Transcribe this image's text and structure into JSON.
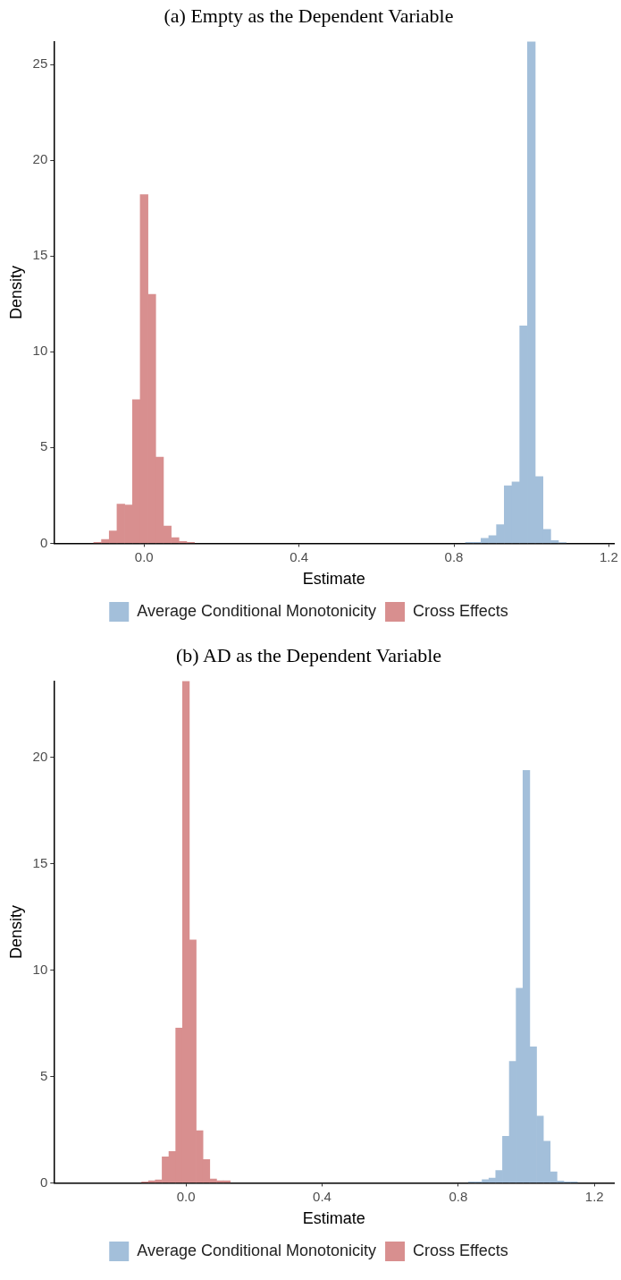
{
  "chart_data": [
    {
      "type": "histogram",
      "title": "(a) Empty as the Dependent Variable",
      "xlabel": "Estimate",
      "ylabel": "Density",
      "xlim": [
        -0.233,
        1.213
      ],
      "xticks": [
        {
          "value": 0,
          "label": "0.0"
        },
        0.4,
        0.8,
        1.2
      ],
      "ylim": [
        0,
        26.2
      ],
      "yticks": [
        0,
        5,
        10,
        15,
        20,
        25
      ],
      "grid": false,
      "legend": "bottom",
      "bins": [
        -0.13,
        -0.11,
        -0.09,
        -0.07,
        -0.05,
        -0.03,
        -0.01,
        0.01,
        0.03,
        0.05,
        0.07,
        0.09,
        0.11,
        0.13,
        0.15,
        0.17,
        0.19,
        0.21,
        0.23,
        0.25,
        0.27,
        0.29,
        0.31,
        0.33,
        0.35,
        0.37,
        0.39,
        0.41,
        0.43,
        0.45,
        0.47,
        0.49,
        0.51,
        0.53,
        0.55,
        0.57,
        0.59,
        0.61,
        0.63,
        0.65,
        0.67,
        0.69,
        0.71,
        0.73,
        0.75,
        0.77,
        0.79,
        0.81,
        0.83,
        0.85,
        0.87,
        0.89,
        0.91,
        0.93,
        0.95,
        0.97,
        0.99,
        1.01,
        1.03,
        1.05,
        1.07,
        1.09,
        1.11,
        1.13,
        1.15
      ],
      "series": [
        {
          "name": "Average Conditional Monotonicity",
          "color": "#a3bfda",
          "values": [
            null,
            null,
            null,
            null,
            null,
            null,
            null,
            null,
            null,
            null,
            null,
            null,
            null,
            null,
            null,
            null,
            null,
            null,
            null,
            null,
            null,
            null,
            null,
            null,
            null,
            null,
            null,
            null,
            null,
            null,
            null,
            null,
            null,
            null,
            null,
            null,
            null,
            null,
            null,
            null,
            null,
            null,
            null,
            null,
            null,
            null,
            null,
            null,
            0.05,
            0.05,
            0.26,
            0.4,
            0.97,
            3.0,
            3.2,
            11.35,
            26.2,
            3.48,
            0.73,
            0.14,
            0.04,
            null,
            null,
            null
          ]
        },
        {
          "name": "Cross Effects",
          "color": "#d88f8f",
          "values": [
            0.05,
            0.2,
            0.65,
            2.05,
            2.0,
            7.5,
            18.2,
            13.0,
            4.5,
            0.9,
            0.3,
            0.1,
            0.05,
            null,
            null,
            null,
            null,
            null,
            null,
            null,
            null,
            null,
            null,
            null,
            null,
            null,
            null,
            null,
            null,
            null,
            null,
            null,
            null,
            null,
            null,
            null,
            null,
            null,
            null,
            null,
            null,
            null,
            null,
            null,
            null,
            null,
            null,
            null,
            null,
            null,
            null,
            null,
            null,
            null,
            null,
            null,
            null,
            null,
            null,
            null,
            null,
            null,
            null,
            null
          ]
        }
      ]
    },
    {
      "type": "histogram",
      "title": "(b) AD as the Dependent Variable",
      "xlabel": "Estimate",
      "ylabel": "Density",
      "xlim": [
        -0.388,
        1.257
      ],
      "xticks": [
        {
          "value": 0,
          "label": "0.0"
        },
        0.4,
        0.8,
        1.2
      ],
      "ylim": [
        0,
        23.6
      ],
      "yticks": [
        0,
        5,
        10,
        15,
        20
      ],
      "grid": false,
      "legend": "bottom",
      "bins": [
        -0.13,
        -0.11,
        -0.09,
        -0.07,
        -0.05,
        -0.03,
        -0.01,
        0.01,
        0.03,
        0.05,
        0.07,
        0.09,
        0.11,
        0.13,
        0.15,
        0.17,
        0.19,
        0.21,
        0.23,
        0.25,
        0.27,
        0.29,
        0.31,
        0.33,
        0.35,
        0.37,
        0.39,
        0.41,
        0.43,
        0.45,
        0.47,
        0.49,
        0.51,
        0.53,
        0.55,
        0.57,
        0.59,
        0.61,
        0.63,
        0.65,
        0.67,
        0.69,
        0.71,
        0.73,
        0.75,
        0.77,
        0.79,
        0.81,
        0.83,
        0.85,
        0.87,
        0.89,
        0.91,
        0.93,
        0.95,
        0.97,
        0.99,
        1.01,
        1.03,
        1.05,
        1.07,
        1.09,
        1.11,
        1.13,
        1.15
      ],
      "series": [
        {
          "name": "Average Conditional Monotonicity",
          "color": "#a3bfda",
          "values": [
            null,
            null,
            null,
            null,
            null,
            null,
            null,
            null,
            null,
            null,
            null,
            null,
            null,
            null,
            null,
            null,
            null,
            null,
            null,
            null,
            null,
            null,
            null,
            null,
            null,
            null,
            null,
            null,
            null,
            null,
            null,
            null,
            null,
            null,
            null,
            null,
            null,
            null,
            null,
            null,
            null,
            null,
            null,
            null,
            null,
            null,
            null,
            null,
            0.04,
            0.04,
            0.15,
            0.22,
            0.58,
            2.19,
            5.71,
            9.15,
            19.4,
            6.4,
            3.14,
            1.96,
            0.52,
            0.09,
            0.04,
            0.04
          ]
        },
        {
          "name": "Cross Effects",
          "color": "#d88f8f",
          "values": [
            0.05,
            0.1,
            0.14,
            1.22,
            1.48,
            7.28,
            23.6,
            11.42,
            2.45,
            1.1,
            0.18,
            0.1,
            0.1,
            null,
            null,
            null,
            null,
            null,
            null,
            null,
            null,
            null,
            null,
            null,
            null,
            null,
            null,
            null,
            null,
            null,
            null,
            null,
            null,
            null,
            null,
            null,
            null,
            null,
            null,
            null,
            null,
            null,
            null,
            null,
            null,
            null,
            null,
            null,
            null,
            null,
            null,
            null,
            null,
            null,
            null,
            null,
            null,
            null,
            null,
            null,
            null,
            null,
            null,
            null
          ]
        }
      ]
    }
  ]
}
